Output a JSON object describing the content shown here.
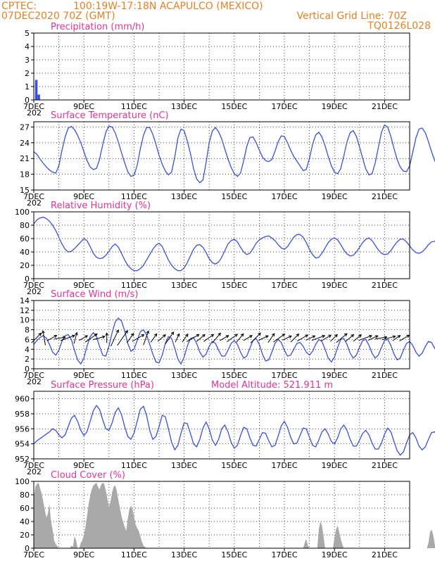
{
  "header": {
    "source": "CPTEC:",
    "location": "100:19W-17:18N  ACAPULCO (MEXICO)",
    "init": "07DEC2020 70Z (GMT)",
    "grid_note": "Vertical Grid Line: 70Z",
    "product": "TQ0126L028"
  },
  "x_axis": {
    "labels": [
      "7DEC",
      "9DEC",
      "11DEC",
      "13DEC",
      "15DEC",
      "17DEC",
      "19DEC",
      "21DEC"
    ],
    "label_days": [
      0,
      2,
      4,
      6,
      8,
      10,
      12,
      14
    ],
    "range_days": [
      0,
      15
    ],
    "year_stub": "202"
  },
  "colors": {
    "header": "#e8801e",
    "title": "#e8309a",
    "series": "#3a4fe0",
    "cloud": "#a9a9a9"
  },
  "chart_data": [
    {
      "id": "precip",
      "type": "bar",
      "title": "Precipitation (mm/h)",
      "ylim": [
        0,
        5
      ],
      "yticks": [
        0,
        1,
        2,
        3,
        4,
        5
      ],
      "color": "#3a4fe0",
      "points": [
        [
          0.1,
          1.5
        ],
        [
          0.2,
          0.4
        ]
      ]
    },
    {
      "id": "temp",
      "type": "line",
      "title": "Surface Temperature (nC)",
      "ylim": [
        15,
        28
      ],
      "yticks": [
        15,
        18,
        21,
        24,
        27
      ],
      "x_step_days": 0.125,
      "values": [
        22.3,
        21.8,
        20.9,
        20.1,
        19.4,
        18.8,
        18.4,
        18.2,
        19.6,
        22.5,
        25.1,
        26.8,
        27.1,
        26.5,
        25.4,
        24.0,
        22.3,
        20.6,
        19.4,
        18.9,
        19.1,
        20.8,
        23.6,
        26.0,
        27.2,
        27.0,
        25.9,
        24.1,
        22.1,
        20.2,
        18.5,
        17.6,
        17.8,
        19.7,
        22.8,
        25.4,
        26.9,
        26.9,
        25.6,
        23.7,
        21.6,
        19.9,
        18.6,
        17.9,
        18.4,
        21.3,
        24.9,
        26.6,
        26.3,
        24.4,
        22.0,
        19.1,
        17.1,
        16.4,
        16.9,
        20.2,
        24.0,
        26.2,
        26.9,
        26.1,
        24.7,
        22.8,
        20.9,
        19.3,
        18.1,
        17.6,
        18.2,
        20.6,
        23.3,
        25.0,
        25.1,
        24.0,
        22.6,
        21.3,
        20.6,
        20.4,
        20.8,
        22.4,
        24.2,
        25.3,
        25.2,
        24.0,
        22.6,
        21.4,
        20.5,
        19.6,
        18.7,
        18.9,
        21.0,
        23.7,
        25.5,
        26.0,
        25.1,
        23.4,
        21.4,
        19.6,
        18.4,
        18.1,
        19.1,
        21.5,
        24.2,
        25.9,
        26.3,
        25.2,
        23.2,
        21.0,
        19.0,
        17.9,
        18.1,
        20.1,
        23.1,
        26.0,
        27.4,
        27.0,
        25.2,
        22.9,
        20.8,
        19.4,
        18.6,
        18.5,
        19.6,
        22.2,
        24.9,
        26.6,
        26.8,
        25.9,
        24.2,
        22.3,
        20.6,
        19.3,
        18.7,
        19.1,
        21.3,
        24.1,
        26.1,
        26.8,
        26.1,
        24.5,
        22.6,
        20.7,
        19.2,
        18.6,
        18.9,
        20.9,
        23.6,
        25.8,
        26.5,
        25.7,
        24.0,
        22.1,
        20.4,
        19.2,
        18.8,
        19.5,
        21.7,
        24.2,
        25.9,
        26.2,
        25.1,
        23.4,
        21.6,
        20.1,
        19.0,
        18.8,
        19.6,
        21.6,
        23.7,
        24.9,
        24.9,
        23.9,
        22.5,
        21.1,
        20.0,
        19.4,
        19.7,
        21.2,
        22.9,
        23.6,
        23.3,
        22.6,
        21.7,
        20.9,
        20.6,
        21.0,
        22.3,
        24.1,
        25.5,
        26.1,
        25.5,
        23.6,
        21.3,
        19.3,
        17.8,
        17.0,
        16.9,
        18.0,
        20.6,
        23.6,
        25.6,
        25.9
      ]
    },
    {
      "id": "rh",
      "type": "line",
      "title": "Relative Humidity (%)",
      "ylim": [
        0,
        100
      ],
      "yticks": [
        0,
        20,
        40,
        60,
        80,
        100
      ],
      "x_step_days": 0.125,
      "values": [
        82,
        88,
        91,
        92,
        90,
        86,
        80,
        72,
        62,
        52,
        44,
        40,
        41,
        45,
        50,
        55,
        60,
        57,
        48,
        38,
        32,
        30,
        31,
        35,
        41,
        48,
        52,
        47,
        38,
        28,
        20,
        15,
        12,
        12,
        15,
        20,
        28,
        36,
        44,
        50,
        53,
        48,
        38,
        28,
        20,
        15,
        12,
        12,
        16,
        24,
        34,
        44,
        50,
        51,
        47,
        39,
        30,
        24,
        22,
        25,
        32,
        42,
        52,
        57,
        59,
        55,
        47,
        40,
        36,
        38,
        45,
        53,
        58,
        61,
        63,
        64,
        61,
        57,
        51,
        46,
        44,
        48,
        55,
        62,
        66,
        66,
        62,
        54,
        44,
        36,
        31,
        32,
        38,
        46,
        54,
        59,
        61,
        58,
        51,
        43,
        37,
        34,
        35,
        40,
        47,
        54,
        59,
        61,
        57,
        50,
        43,
        38,
        36,
        37,
        42,
        49,
        55,
        59,
        59,
        55,
        49,
        43,
        39,
        38,
        40,
        45,
        51,
        55,
        56,
        54,
        50,
        45,
        42,
        42,
        45,
        51,
        57,
        62,
        64,
        62,
        57,
        50,
        43,
        37,
        34,
        34,
        38,
        45,
        53,
        61,
        66,
        68,
        66,
        60,
        52,
        44,
        38,
        36,
        38,
        44,
        52,
        59,
        64,
        66,
        65,
        61,
        54,
        47,
        41,
        38,
        38,
        42,
        47,
        51,
        53,
        52,
        49,
        47,
        47,
        50,
        54,
        58,
        61,
        63,
        59,
        51,
        43,
        38,
        37,
        38,
        39,
        38,
        35,
        30,
        26,
        23,
        21,
        23,
        27
      ]
    },
    {
      "id": "wind",
      "type": "line",
      "title": "Surface Wind (m/s)",
      "ylim": [
        0,
        14
      ],
      "yticks": [
        0,
        2,
        4,
        6,
        8,
        10,
        12,
        14
      ],
      "x_step_days": 0.125,
      "values": [
        5.0,
        5.8,
        6.4,
        6.8,
        6.3,
        5.0,
        3.4,
        2.8,
        3.8,
        5.6,
        6.8,
        7.0,
        6.0,
        3.8,
        1.8,
        1.0,
        2.2,
        4.6,
        6.6,
        7.4,
        6.6,
        4.6,
        2.8,
        2.6,
        4.6,
        7.4,
        9.6,
        10.4,
        9.8,
        7.8,
        5.2,
        3.6,
        4.0,
        5.8,
        7.6,
        8.0,
        7.0,
        5.0,
        3.0,
        1.4,
        1.2,
        2.8,
        5.2,
        6.6,
        6.2,
        4.2,
        2.0,
        1.0,
        2.4,
        4.6,
        6.2,
        6.4,
        5.2,
        3.4,
        2.4,
        3.0,
        4.6,
        5.6,
        5.2,
        3.8,
        2.6,
        2.6,
        3.8,
        5.2,
        5.8,
        5.0,
        3.4,
        2.2,
        2.6,
        4.2,
        5.8,
        6.2,
        5.0,
        3.0,
        1.6,
        1.8,
        3.4,
        5.2,
        6.0,
        5.4,
        3.8,
        2.6,
        2.8,
        4.0,
        5.2,
        5.4,
        4.6,
        3.4,
        2.8,
        3.6,
        5.0,
        6.0,
        5.6,
        4.0,
        2.2,
        1.4,
        2.4,
        4.4,
        6.0,
        6.2,
        5.0,
        3.2,
        2.2,
        2.8,
        4.4,
        5.8,
        6.0,
        4.8,
        3.2,
        2.2,
        2.8,
        4.4,
        5.8,
        6.0,
        4.8,
        3.0,
        1.8,
        2.2,
        3.8,
        5.2,
        5.6,
        4.8,
        3.4,
        2.6,
        3.2,
        4.6,
        5.6,
        5.4,
        4.2,
        3.0,
        2.8,
        3.8,
        5.0,
        5.8,
        5.4,
        4.0,
        2.8,
        2.8,
        3.8,
        5.4,
        6.4,
        6.2,
        5.0,
        3.6,
        3.0,
        3.6,
        4.8,
        5.8,
        6.0,
        5.2,
        4.0,
        3.2,
        3.4,
        4.6,
        6.0,
        6.8,
        6.6,
        5.4,
        3.8,
        2.6,
        2.2,
        2.8,
        4.0,
        5.0,
        5.2,
        4.4,
        3.0,
        1.8,
        1.4,
        2.2,
        4.0,
        6.4,
        9.0,
        11.0,
        11.6,
        10.8,
        8.6,
        6.0,
        4.2,
        4.2,
        6.0,
        8.6,
        11.0,
        12.4,
        12.3,
        11.0,
        8.8,
        6.4,
        4.4,
        3.2,
        3.0
      ]
    },
    {
      "id": "wind_vectors",
      "type": "vector",
      "angle_from_deg": [
        225,
        170,
        240,
        260,
        250,
        195,
        240,
        235,
        255,
        180,
        205,
        215,
        215,
        240,
        200,
        215,
        230,
        215,
        205,
        215,
        240,
        230,
        235,
        220,
        240,
        235,
        220,
        240,
        225,
        245,
        215,
        235,
        245,
        225,
        240,
        245,
        250,
        240,
        225,
        230,
        230,
        230,
        250,
        245,
        260,
        255,
        235,
        240
      ]
    },
    {
      "id": "pressure",
      "type": "line",
      "title": "Surface Pressure (hPa)",
      "subtitle": "Model Altitude: 521.911 m",
      "ylim": [
        952,
        961
      ],
      "yticks": [
        952,
        954,
        956,
        958,
        960
      ],
      "x_step_days": 0.125,
      "values": [
        954.0,
        954.4,
        954.7,
        955.0,
        955.3,
        955.6,
        956.0,
        955.8,
        955.2,
        954.8,
        955.2,
        956.3,
        957.4,
        957.8,
        957.0,
        955.8,
        955.1,
        955.6,
        957.0,
        958.4,
        959.1,
        958.6,
        957.2,
        956.0,
        955.8,
        956.8,
        958.2,
        958.8,
        957.9,
        956.3,
        955.0,
        954.6,
        955.4,
        957.0,
        958.6,
        959.0,
        957.8,
        955.8,
        954.6,
        955.0,
        956.3,
        957.8,
        957.6,
        956.0,
        954.2,
        953.2,
        953.8,
        955.4,
        956.8,
        956.7,
        955.4,
        954.0,
        953.6,
        954.6,
        956.1,
        956.9,
        956.0,
        954.5,
        953.8,
        954.6,
        956.0,
        956.5,
        955.6,
        954.2,
        953.4,
        953.8,
        955.1,
        956.2,
        956.0,
        954.8,
        953.8,
        953.7,
        954.6,
        955.5,
        955.4,
        954.4,
        953.6,
        953.8,
        955.0,
        956.4,
        957.0,
        956.2,
        954.9,
        954.0,
        954.1,
        955.1,
        956.1,
        956.0,
        954.9,
        953.8,
        953.6,
        954.5,
        955.6,
        956.0,
        955.3,
        954.3,
        954.0,
        954.8,
        956.0,
        956.5,
        955.8,
        954.6,
        953.7,
        953.7,
        954.5,
        955.4,
        955.8,
        955.2,
        954.1,
        953.3,
        953.3,
        954.1,
        955.3,
        956.1,
        955.6,
        954.3,
        953.1,
        952.5,
        952.9,
        954.1,
        955.2,
        955.5,
        954.8,
        953.7,
        953.2,
        953.6,
        954.6,
        955.5,
        955.6,
        954.8,
        953.9,
        953.7,
        954.5,
        955.5,
        955.7,
        954.8,
        953.9,
        953.9,
        954.8,
        955.8,
        956.2,
        955.5,
        954.6,
        954.3,
        955.0,
        956.2,
        956.8,
        956.2,
        955.0,
        954.2,
        954.5,
        955.6,
        956.5,
        956.2,
        955.1,
        954.3,
        954.5,
        955.5,
        956.3,
        956.0,
        955.0,
        954.4,
        954.7,
        955.6,
        956.2,
        955.9,
        955.0,
        954.3,
        954.6,
        955.6,
        956.8,
        957.8,
        957.7,
        956.8,
        955.6,
        955.0,
        955.5,
        956.6,
        957.3,
        957.0,
        955.8,
        954.8,
        955.0,
        956.2,
        957.6,
        958.3,
        957.6,
        956.0,
        954.8
      ]
    },
    {
      "id": "cloud",
      "type": "area",
      "title": "Cloud Cover (%)",
      "ylim": [
        0,
        100
      ],
      "yticks": [
        0,
        20,
        40,
        60,
        80,
        100
      ],
      "x_step_days": 0.0625,
      "color": "#a9a9a9",
      "values": [
        75,
        92,
        96,
        98,
        90,
        82,
        70,
        58,
        46,
        52,
        66,
        40,
        28,
        12,
        6,
        3,
        0,
        0,
        0,
        0,
        0,
        0,
        0,
        0,
        4,
        2,
        18,
        12,
        0,
        0,
        8,
        12,
        20,
        32,
        48,
        66,
        78,
        88,
        94,
        96,
        98,
        92,
        88,
        95,
        98,
        96,
        86,
        74,
        62,
        70,
        84,
        92,
        94,
        86,
        72,
        60,
        48,
        40,
        32,
        26,
        44,
        58,
        64,
        58,
        48,
        36,
        30,
        26,
        18,
        10,
        4,
        2,
        0,
        0,
        0,
        0,
        0,
        0,
        0,
        0,
        0,
        0,
        0,
        0,
        0,
        0,
        0,
        0,
        0,
        0,
        0,
        0,
        0,
        0,
        0,
        0,
        0,
        0,
        0,
        0,
        0,
        0,
        0,
        0,
        0,
        0,
        0,
        0,
        0,
        0,
        0,
        0,
        0,
        0,
        0,
        0,
        0,
        0,
        0,
        0,
        0,
        0,
        0,
        0,
        0,
        0,
        0,
        0,
        0,
        0,
        0,
        0,
        0,
        0,
        0,
        0,
        0,
        0,
        0,
        0,
        0,
        0,
        0,
        0,
        0,
        0,
        0,
        0,
        0,
        0,
        0,
        0,
        0,
        0,
        0,
        0,
        0,
        0,
        0,
        0,
        0,
        0,
        0,
        0,
        0,
        0,
        0,
        0,
        0,
        0,
        0,
        0,
        0,
        8,
        14,
        4,
        0,
        0,
        0,
        0,
        0,
        0,
        28,
        40,
        34,
        18,
        0,
        0,
        0,
        0,
        0,
        0,
        16,
        28,
        34,
        24,
        14,
        6,
        0,
        0,
        0,
        0,
        0,
        0,
        0,
        0,
        0,
        0,
        0,
        0,
        0,
        0,
        0,
        0,
        0,
        0,
        0,
        0,
        0,
        0,
        0,
        0,
        0,
        0,
        0,
        0,
        0,
        0,
        0,
        0,
        0,
        0,
        0,
        0,
        0,
        0,
        0,
        0,
        0,
        0,
        0,
        0,
        0,
        0,
        0,
        0,
        0,
        0,
        0,
        0,
        0,
        0,
        8,
        24,
        28,
        20,
        6,
        0,
        0,
        0,
        0,
        0,
        0,
        0,
        0,
        0,
        4,
        22,
        34,
        44,
        40,
        22,
        10,
        0,
        0,
        0,
        0,
        0,
        0,
        0,
        0,
        8,
        24,
        40,
        46,
        38,
        22,
        14,
        20,
        34,
        44,
        50,
        60,
        74,
        88,
        94,
        96,
        94,
        92,
        88,
        82,
        90,
        96,
        97,
        94,
        88,
        84,
        90,
        96,
        94,
        86,
        80,
        86,
        92,
        96,
        97,
        94,
        90,
        86,
        82,
        86,
        92,
        95,
        96,
        94,
        92,
        88,
        84,
        80,
        76,
        82,
        88,
        92,
        90,
        84,
        72,
        56,
        42,
        34,
        28,
        22,
        30,
        42,
        56,
        66,
        74,
        82,
        86,
        80,
        68,
        56,
        46,
        40,
        36,
        30,
        34,
        44,
        58,
        72,
        82,
        86,
        84,
        78,
        72,
        66,
        72,
        82,
        90,
        96,
        98,
        96,
        92,
        88,
        84,
        88,
        94,
        97,
        98,
        96,
        94,
        92,
        90,
        92,
        96,
        98,
        99,
        97,
        95,
        93,
        90,
        92,
        95,
        97,
        96,
        94,
        92,
        90,
        88,
        90,
        94,
        96,
        98,
        97,
        95,
        93,
        91,
        89,
        92,
        95,
        97,
        96,
        94,
        91,
        88,
        86,
        88,
        92,
        95,
        97,
        96,
        93,
        90,
        86,
        82,
        78,
        74,
        80,
        86,
        92,
        95,
        93,
        88,
        82,
        76,
        72,
        68,
        66,
        70,
        78,
        86,
        92,
        94,
        92,
        88,
        84,
        80,
        78,
        76,
        74,
        72,
        70,
        68,
        62,
        56,
        50,
        46,
        52,
        58,
        64,
        72,
        80,
        86,
        90,
        92,
        94,
        96,
        97,
        98,
        97,
        95
      ]
    }
  ]
}
